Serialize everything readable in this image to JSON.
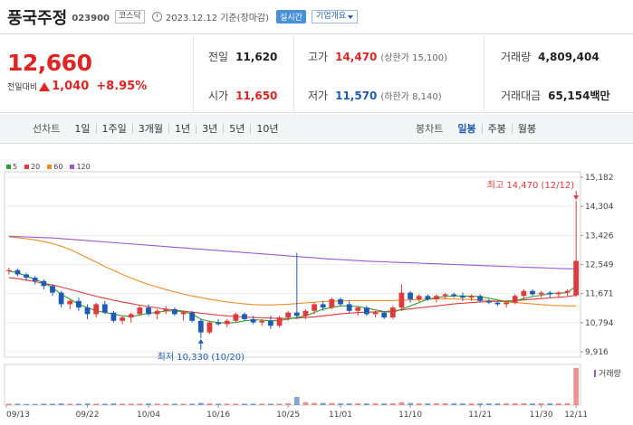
{
  "header": {
    "name": "풍국주정",
    "code": "023900",
    "market": "코스닥",
    "date": "2023.12.12 기준(장마감)",
    "realtime": "실시간",
    "company_info": "기업개요"
  },
  "price": {
    "current": "12,660",
    "change_label": "전일대비",
    "change": "1,040",
    "change_pct": "+8.95%"
  },
  "stats": {
    "prev_close": {
      "label": "전일",
      "value": "11,620"
    },
    "open": {
      "label": "시가",
      "value": "11,650"
    },
    "high": {
      "label": "고가",
      "value": "14,470",
      "sub": "(상한가 15,100)"
    },
    "low": {
      "label": "저가",
      "value": "11,570",
      "sub": "(하한가 8,140)"
    },
    "volume": {
      "label": "거래량",
      "value": "4,809,404"
    },
    "amount": {
      "label": "거래대금",
      "value": "65,154",
      "unit": "백만"
    }
  },
  "period_bar": {
    "line_label": "선차트",
    "line_items": [
      "1일",
      "1주일",
      "3개월",
      "1년",
      "3년",
      "5년",
      "10년"
    ],
    "candle_label": "봉차트",
    "candle_items": [
      "일봉",
      "주봉",
      "월봉"
    ],
    "active_candle": "일봉"
  },
  "legend": [
    {
      "label": "5",
      "color": "#2ca02c"
    },
    {
      "label": "20",
      "color": "#e0393b"
    },
    {
      "label": "60",
      "color": "#f08c24"
    },
    {
      "label": "120",
      "color": "#9b59d0"
    }
  ],
  "chart_data": {
    "type": "candlestick",
    "y_ticks": [
      "15,182",
      "14,304",
      "13,426",
      "12,549",
      "11,671",
      "10,794",
      "9,916"
    ],
    "ylim": [
      9916,
      15182
    ],
    "x_ticks": [
      "09/13",
      "09/22",
      "10/04",
      "10/16",
      "10/25",
      "11/01",
      "11/10",
      "11/21",
      "11/30",
      "12/11"
    ],
    "high_annotation": "최고 14,470 (12/12)",
    "low_annotation": "최저 10,330 (10/20)",
    "volume_label": "거래량",
    "candles": [
      [
        12350,
        12450,
        12250,
        12380
      ],
      [
        12380,
        12420,
        12200,
        12250
      ],
      [
        12250,
        12300,
        12050,
        12150
      ],
      [
        12150,
        12200,
        11950,
        12050
      ],
      [
        12050,
        12100,
        11800,
        11900
      ],
      [
        11900,
        11950,
        11600,
        11700
      ],
      [
        11700,
        11750,
        11250,
        11350
      ],
      [
        11350,
        11500,
        11200,
        11450
      ],
      [
        11450,
        11550,
        11150,
        11250
      ],
      [
        11250,
        11350,
        10900,
        11050
      ],
      [
        11050,
        11400,
        10950,
        11350
      ],
      [
        11350,
        11450,
        11050,
        11100
      ],
      [
        11100,
        11150,
        10800,
        10850
      ],
      [
        10850,
        11000,
        10750,
        10950
      ],
      [
        10950,
        11100,
        10800,
        11050
      ],
      [
        11050,
        11300,
        11000,
        11250
      ],
      [
        11250,
        11350,
        11000,
        11050
      ],
      [
        11050,
        11200,
        10900,
        11150
      ],
      [
        11150,
        11300,
        11050,
        11200
      ],
      [
        11200,
        11250,
        11000,
        11050
      ],
      [
        11050,
        11150,
        10850,
        11100
      ],
      [
        11100,
        11150,
        10800,
        10850
      ],
      [
        10850,
        10900,
        10330,
        10500
      ],
      [
        10500,
        10850,
        10450,
        10800
      ],
      [
        10800,
        10900,
        10700,
        10750
      ],
      [
        10750,
        10900,
        10650,
        10850
      ],
      [
        10850,
        11100,
        10800,
        11050
      ],
      [
        11050,
        11100,
        10850,
        10900
      ],
      [
        10900,
        11000,
        10750,
        10800
      ],
      [
        10800,
        10900,
        10700,
        10850
      ],
      [
        10850,
        11000,
        10600,
        10700
      ],
      [
        10700,
        11000,
        10650,
        10950
      ],
      [
        10950,
        11150,
        10850,
        11100
      ],
      [
        11100,
        12900,
        10900,
        11000
      ],
      [
        11000,
        11200,
        10900,
        11150
      ],
      [
        11150,
        11400,
        11050,
        11350
      ],
      [
        11350,
        11450,
        11150,
        11250
      ],
      [
        11250,
        11550,
        11200,
        11500
      ],
      [
        11500,
        11550,
        11300,
        11350
      ],
      [
        11350,
        11450,
        11100,
        11150
      ],
      [
        11150,
        11300,
        11000,
        11250
      ],
      [
        11250,
        11300,
        11000,
        11050
      ],
      [
        11050,
        11150,
        10950,
        11100
      ],
      [
        11100,
        11150,
        10900,
        10950
      ],
      [
        10950,
        11300,
        10900,
        11250
      ],
      [
        11250,
        11950,
        11150,
        11700
      ],
      [
        11700,
        11750,
        11400,
        11500
      ],
      [
        11500,
        11650,
        11400,
        11600
      ],
      [
        11600,
        11650,
        11450,
        11500
      ],
      [
        11500,
        11650,
        11400,
        11600
      ],
      [
        11600,
        11700,
        11500,
        11650
      ],
      [
        11650,
        11700,
        11550,
        11600
      ],
      [
        11600,
        11700,
        11450,
        11550
      ],
      [
        11550,
        11650,
        11450,
        11600
      ],
      [
        11600,
        11650,
        11400,
        11450
      ],
      [
        11450,
        11500,
        11350,
        11400
      ],
      [
        11400,
        11450,
        11300,
        11350
      ],
      [
        11350,
        11450,
        11250,
        11400
      ],
      [
        11400,
        11650,
        11350,
        11600
      ],
      [
        11600,
        11800,
        11500,
        11750
      ],
      [
        11750,
        11800,
        11600,
        11650
      ],
      [
        11650,
        11750,
        11550,
        11700
      ],
      [
        11700,
        11750,
        11550,
        11650
      ],
      [
        11650,
        11750,
        11550,
        11700
      ],
      [
        11700,
        11800,
        11600,
        11750
      ],
      [
        11620,
        14470,
        11570,
        12660
      ]
    ],
    "ma5": [
      12350,
      12300,
      12200,
      12100,
      12000,
      11850,
      11650,
      11500,
      11350,
      11250,
      11150,
      11100,
      11050,
      11000,
      10980,
      11020,
      11080,
      11100,
      11150,
      11150,
      11120,
      11050,
      10900,
      10830,
      10800,
      10780,
      10800,
      10850,
      10880,
      10870,
      10850,
      10860,
      10900,
      10950,
      11000,
      11100,
      11200,
      11250,
      11300,
      11300,
      11280,
      11230,
      11180,
      11130,
      11100,
      11200,
      11300,
      11400,
      11500,
      11550,
      11580,
      11600,
      11600,
      11590,
      11580,
      11530,
      11480,
      11430,
      11450,
      11520,
      11580,
      11620,
      11670,
      11690,
      11700,
      11900
    ],
    "ma20": [
      12150,
      12120,
      12080,
      12030,
      11980,
      11930,
      11870,
      11800,
      11730,
      11660,
      11590,
      11530,
      11470,
      11420,
      11370,
      11320,
      11280,
      11240,
      11200,
      11170,
      11140,
      11110,
      11080,
      11050,
      11020,
      11000,
      10980,
      10960,
      10950,
      10940,
      10930,
      10920,
      10920,
      10930,
      10950,
      10970,
      11000,
      11030,
      11060,
      11080,
      11100,
      11110,
      11120,
      11130,
      11150,
      11180,
      11210,
      11240,
      11270,
      11300,
      11330,
      11360,
      11380,
      11400,
      11420,
      11430,
      11440,
      11450,
      11460,
      11480,
      11500,
      11520,
      11540,
      11560,
      11580,
      11620
    ],
    "ma60": [
      13380,
      13360,
      13330,
      13290,
      13240,
      13180,
      13100,
      13000,
      12880,
      12750,
      12620,
      12490,
      12370,
      12250,
      12140,
      12040,
      11950,
      11870,
      11790,
      11720,
      11660,
      11600,
      11550,
      11500,
      11460,
      11420,
      11390,
      11360,
      11340,
      11330,
      11330,
      11340,
      11350,
      11370,
      11390,
      11410,
      11430,
      11440,
      11450,
      11460,
      11460,
      11460,
      11460,
      11460,
      11460,
      11470,
      11480,
      11490,
      11500,
      11510,
      11510,
      11510,
      11500,
      11490,
      11480,
      11460,
      11440,
      11420,
      11400,
      11380,
      11360,
      11340,
      11320,
      11310,
      11300,
      11300
    ],
    "ma120": [
      13400,
      13390,
      13380,
      13370,
      13360,
      13350,
      13330,
      13310,
      13290,
      13270,
      13250,
      13230,
      13210,
      13190,
      13170,
      13150,
      13130,
      13110,
      13090,
      13070,
      13050,
      13030,
      13010,
      12990,
      12970,
      12950,
      12930,
      12910,
      12890,
      12870,
      12850,
      12830,
      12810,
      12790,
      12770,
      12750,
      12730,
      12710,
      12695,
      12680,
      12665,
      12650,
      12640,
      12630,
      12620,
      12610,
      12600,
      12590,
      12580,
      12570,
      12560,
      12550,
      12540,
      12530,
      12520,
      12510,
      12500,
      12490,
      12480,
      12470,
      12460,
      12450,
      12440,
      12430,
      12420,
      12420
    ],
    "volume": [
      4,
      4,
      3,
      3,
      4,
      4,
      5,
      4,
      4,
      5,
      4,
      4,
      5,
      4,
      4,
      4,
      5,
      4,
      4,
      4,
      4,
      4,
      6,
      5,
      4,
      4,
      4,
      4,
      4,
      4,
      4,
      4,
      5,
      22,
      8,
      6,
      6,
      6,
      5,
      5,
      5,
      5,
      5,
      5,
      5,
      8,
      6,
      5,
      5,
      5,
      5,
      5,
      5,
      5,
      5,
      5,
      5,
      5,
      5,
      5,
      5,
      5,
      5,
      5,
      5,
      100
    ]
  }
}
